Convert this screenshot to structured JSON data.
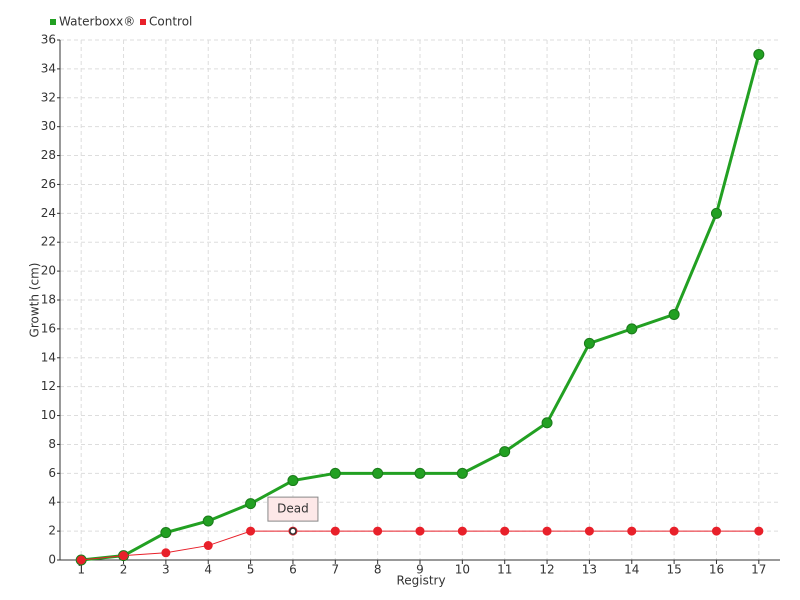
{
  "chart_data": {
    "type": "line",
    "x_label": "Registry",
    "y_label": "Growth (cm)",
    "categories": [
      "1",
      "2",
      "3",
      "4",
      "5",
      "6",
      "7",
      "8",
      "9",
      "10",
      "11",
      "12",
      "13",
      "14",
      "15",
      "16",
      "17"
    ],
    "series": [
      {
        "name": "Waterboxx®",
        "color": "#22a022",
        "values": [
          0,
          0.3,
          1.9,
          2.7,
          3.9,
          5.5,
          6,
          6,
          6,
          6,
          7.5,
          9.5,
          15,
          16,
          17,
          24,
          35
        ]
      },
      {
        "name": "Control",
        "color": "#e8202a",
        "values": [
          0,
          0.3,
          0.5,
          1,
          2,
          2,
          2,
          2,
          2,
          2,
          2,
          2,
          2,
          2,
          2,
          2,
          2
        ]
      }
    ],
    "ylim": [
      0,
      36
    ],
    "yticks": [
      0,
      2,
      4,
      6,
      8,
      10,
      12,
      14,
      16,
      18,
      20,
      22,
      24,
      26,
      28,
      30,
      32,
      34,
      36
    ],
    "grid": true,
    "annotations": [
      {
        "text": "Dead",
        "series": "Control",
        "category": "6"
      }
    ]
  }
}
